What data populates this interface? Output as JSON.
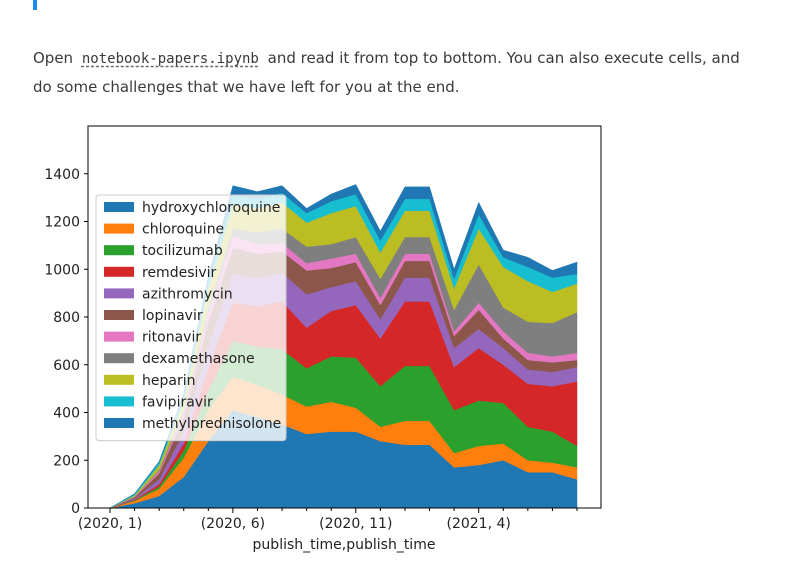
{
  "text": {
    "open": "Open",
    "file": "notebook-papers.ipynb",
    "rest": "and read it from top to bottom. You can also execute cells, and do some challenges that we have left for you at the end."
  },
  "chart_data": {
    "type": "area",
    "stacked": true,
    "xlabel": "publish_time,publish_time",
    "ylabel": "",
    "ylim": [
      0,
      1600
    ],
    "yticks": [
      0,
      200,
      400,
      600,
      800,
      1000,
      1200,
      1400
    ],
    "x": [
      "(2020, 1)",
      "(2020, 2)",
      "(2020, 3)",
      "(2020, 4)",
      "(2020, 5)",
      "(2020, 6)",
      "(2020, 7)",
      "(2020, 8)",
      "(2020, 9)",
      "(2020, 10)",
      "(2020, 11)",
      "(2020, 12)",
      "(2021, 1)",
      "(2021, 2)",
      "(2021, 3)",
      "(2021, 4)",
      "(2021, 5)",
      "(2021, 6)",
      "(2021, 7)",
      "(2021, 8)"
    ],
    "xtick_labels": [
      "(2020, 1)",
      "(2020, 6)",
      "(2020, 11)",
      "(2021, 4)"
    ],
    "xtick_positions": [
      0,
      5,
      10,
      15
    ],
    "legend_position": "upper-left",
    "series": [
      {
        "name": "hydroxychloroquine",
        "color": "#1f77b4",
        "values": [
          0,
          20,
          50,
          130,
          280,
          410,
          380,
          350,
          310,
          320,
          320,
          280,
          265,
          265,
          170,
          180,
          200,
          150,
          150,
          120
        ]
      },
      {
        "name": "chloroquine",
        "color": "#ff7f0e",
        "values": [
          0,
          10,
          30,
          80,
          130,
          140,
          135,
          125,
          115,
          125,
          100,
          60,
          100,
          100,
          60,
          80,
          70,
          50,
          40,
          50
        ]
      },
      {
        "name": "tocilizumab",
        "color": "#2ca02c",
        "values": [
          0,
          3,
          10,
          30,
          80,
          150,
          160,
          190,
          160,
          190,
          210,
          170,
          230,
          230,
          180,
          190,
          170,
          140,
          130,
          90
        ]
      },
      {
        "name": "remdesivir",
        "color": "#d62728",
        "values": [
          0,
          2,
          10,
          30,
          100,
          160,
          170,
          200,
          170,
          190,
          220,
          200,
          270,
          270,
          180,
          220,
          160,
          180,
          190,
          270
        ]
      },
      {
        "name": "azithromycin",
        "color": "#9467bd",
        "values": [
          0,
          5,
          20,
          50,
          90,
          120,
          120,
          120,
          140,
          100,
          100,
          80,
          100,
          100,
          80,
          80,
          70,
          60,
          60,
          60
        ]
      },
      {
        "name": "lopinavir",
        "color": "#8c564b",
        "values": [
          0,
          5,
          25,
          60,
          100,
          110,
          100,
          90,
          100,
          80,
          80,
          60,
          70,
          70,
          50,
          80,
          40,
          40,
          40,
          30
        ]
      },
      {
        "name": "ritonavir",
        "color": "#e377c2",
        "values": [
          0,
          3,
          10,
          20,
          40,
          50,
          40,
          35,
          30,
          40,
          35,
          30,
          30,
          30,
          20,
          30,
          30,
          30,
          25,
          30
        ]
      },
      {
        "name": "dexamethasone",
        "color": "#7f7f7f",
        "values": [
          0,
          0,
          5,
          10,
          20,
          30,
          50,
          60,
          70,
          60,
          70,
          80,
          70,
          70,
          90,
          160,
          100,
          130,
          140,
          170
        ]
      },
      {
        "name": "heparin",
        "color": "#bcbd22",
        "values": [
          0,
          5,
          20,
          40,
          80,
          100,
          100,
          110,
          100,
          130,
          130,
          110,
          110,
          110,
          90,
          150,
          170,
          170,
          130,
          120
        ]
      },
      {
        "name": "favipiravir",
        "color": "#17becf",
        "values": [
          0,
          5,
          10,
          20,
          30,
          40,
          40,
          40,
          40,
          50,
          50,
          50,
          50,
          50,
          40,
          60,
          40,
          60,
          60,
          40
        ]
      },
      {
        "name": "methylprednisolone",
        "color": "#1f77b4",
        "values": [
          0,
          2,
          5,
          10,
          20,
          40,
          30,
          30,
          20,
          30,
          40,
          40,
          50,
          50,
          40,
          50,
          30,
          40,
          30,
          50
        ]
      }
    ]
  }
}
